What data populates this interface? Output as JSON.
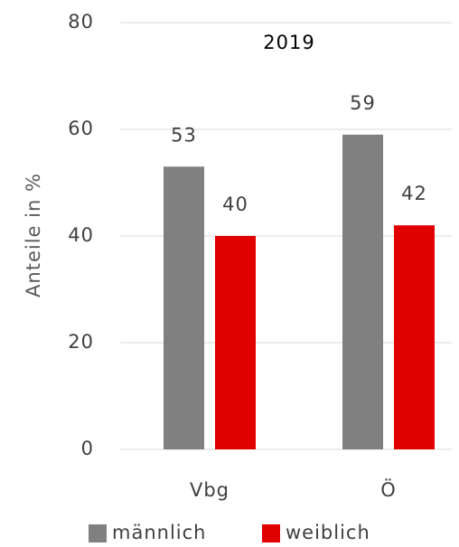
{
  "chart_data": {
    "type": "bar",
    "title": "2019",
    "ylabel": "Anteile in %",
    "categories": [
      "Vbg",
      "Ö"
    ],
    "series": [
      {
        "name": "männlich",
        "color": "#808080",
        "values": [
          53,
          59
        ]
      },
      {
        "name": "weiblich",
        "color": "#e00000",
        "values": [
          40,
          42
        ]
      }
    ],
    "ylim": [
      0,
      80
    ],
    "yticks": [
      0,
      20,
      40,
      60,
      80
    ],
    "grid": true,
    "legend": "bottom"
  }
}
